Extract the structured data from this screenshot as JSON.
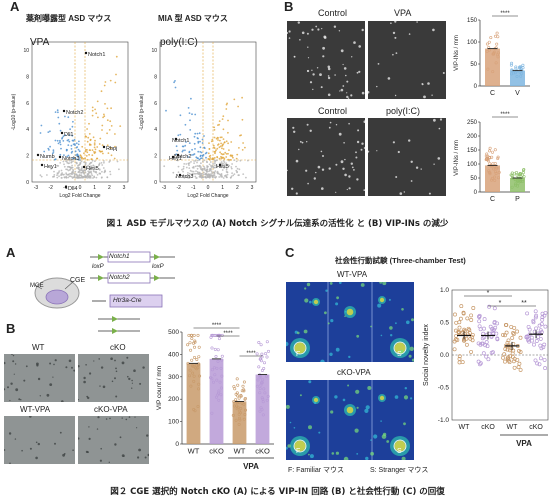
{
  "fig1": {
    "letter_a": "A",
    "letter_b": "B",
    "volcano_left": {
      "title": "薬剤曝露型 ASD マウス",
      "tag": "VPA",
      "ylabel": "-Log10 (p-value)",
      "xlabel": "Log2 Fold Change",
      "yticks": [
        "10",
        "8",
        "6",
        "4",
        "2",
        "0"
      ],
      "xticks": [
        "-3",
        "-2",
        "-1",
        "0",
        "1",
        "2",
        "3"
      ],
      "genes": [
        "Notch1",
        "Notch2",
        "Dll1",
        "Rbpj",
        "Numb",
        "Notch3",
        "Hey1",
        "Hes5",
        "Dll4"
      ]
    },
    "volcano_right": {
      "title": "MIA 型 ASD マウス",
      "tag": "poly(I:C)",
      "ylabel": "-Log10 (p-value)",
      "xlabel": "Log2 Fold Change",
      "yticks": [
        "10",
        "8",
        "6",
        "4",
        "2",
        "0"
      ],
      "xticks": [
        "-3",
        "-2",
        "-1",
        "0",
        "1",
        "2",
        "3"
      ],
      "genes": [
        "Notch1",
        "Notch2",
        "Hey1",
        "Hes5",
        "Notch3"
      ]
    },
    "images": {
      "control1": "Control",
      "vpa": "VPA",
      "control2": "Control",
      "polyic": "poly(I:C)"
    },
    "bar_top": {
      "ylabel": "VIP-INs / mm",
      "sig": "****",
      "categories": [
        "C",
        "V"
      ],
      "yticks": [
        "150",
        "100",
        "50",
        "0"
      ]
    },
    "bar_bottom": {
      "ylabel": "VIP-INs / mm",
      "sig": "****",
      "categories": [
        "C",
        "P"
      ],
      "yticks": [
        "250",
        "200",
        "150",
        "100",
        "50",
        "0"
      ]
    },
    "caption": "図１ ASD モデルマウスの (A) Notch シグナル伝達系の活性化 と (B) VIP-INs の減少"
  },
  "fig2": {
    "letter_a": "A",
    "letter_b": "B",
    "letter_c": "C",
    "construct": {
      "notch1": "Notch1",
      "notch2": "Notch2",
      "loxp1": "loxP",
      "loxp2": "loxP",
      "htr3a": "Htr3a-Cre",
      "mge": "MGE",
      "cge": "CGE"
    },
    "images": {
      "wt": "WT",
      "cko": "cKO",
      "wtvpa": "WT-VPA",
      "ckovpa": "cKO-VPA"
    },
    "vip_bar": {
      "ylabel": "VIP count / mm",
      "yticks": [
        "500",
        "400",
        "300",
        "200",
        "100",
        "0"
      ],
      "categories": [
        "WT",
        "cKO",
        "WT",
        "cKO"
      ],
      "group": "VPA",
      "sig1": "****",
      "sig2": "****",
      "sig3": "****"
    },
    "behavior": {
      "title": "社会性行動試験 (Three-chamber Test)",
      "wtvpa": "WT-VPA",
      "ckovpa": "cKO-VPA",
      "legend_f": "F: Familiar マウス",
      "legend_s": "S: Stranger マウス",
      "f1": "F",
      "s1": "S",
      "f2": "F",
      "s2": "S"
    },
    "novelty": {
      "ylabel": "Social novelty index",
      "yticks": [
        "1.0",
        "0.5",
        "0.0",
        "-0.5",
        "-1.0"
      ],
      "categories": [
        "WT",
        "cKO",
        "WT",
        "cKO"
      ],
      "group": "VPA",
      "sig1": "*",
      "sig2": "*",
      "sig3": "**"
    },
    "caption": "図２ CGE 選択的 Notch cKO (A) による VIP-IN 回路 (B) と社会性行動 (C) の回復"
  },
  "chart_data": [
    {
      "type": "bar",
      "categories": [
        "C",
        "V"
      ],
      "values": [
        85,
        35
      ],
      "ylabel": "VIP-INs / mm²",
      "ylim": [
        0,
        150
      ]
    },
    {
      "type": "bar",
      "categories": [
        "C",
        "P"
      ],
      "values": [
        95,
        50
      ],
      "ylabel": "VIP-INs / mm²",
      "ylim": [
        0,
        250
      ]
    },
    {
      "type": "bar",
      "categories": [
        "WT",
        "cKO",
        "WT",
        "cKO"
      ],
      "values": [
        360,
        380,
        190,
        310
      ],
      "ylabel": "VIP count / mm²",
      "ylim": [
        0,
        500
      ]
    },
    {
      "type": "scatter",
      "categories": [
        "WT",
        "cKO",
        "WT",
        "cKO"
      ],
      "values": [
        0.3,
        0.3,
        0.14,
        0.32
      ],
      "ylabel": "Social novelty index",
      "ylim": [
        -1.0,
        1.0
      ]
    }
  ],
  "colors": {
    "blue": "#4a8fd0",
    "orange": "#e0a53a",
    "grey": "#b5b5b5",
    "bar_brown": "#c89a6a",
    "bar_purple": "#b79ad6",
    "bar_green": "#8fc06a",
    "bar_tan": "#d8a27a"
  }
}
